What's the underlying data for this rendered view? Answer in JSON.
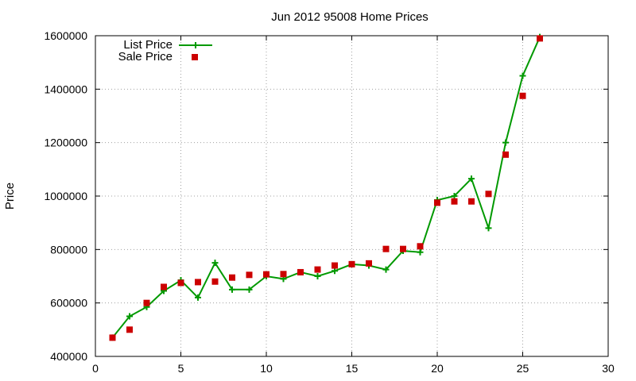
{
  "chart_data": {
    "type": "line",
    "title": "Jun 2012 95008 Home Prices",
    "xlabel": "",
    "ylabel": "Price",
    "xlim": [
      0,
      30
    ],
    "ylim": [
      400000,
      1600000
    ],
    "xticks": [
      0,
      5,
      10,
      15,
      20,
      25,
      30
    ],
    "yticks": [
      400000,
      600000,
      800000,
      1000000,
      1200000,
      1400000,
      1600000
    ],
    "grid": true,
    "legend_position": "top-left",
    "series": [
      {
        "name": "List Price",
        "style": "line-plus",
        "color": "#009900",
        "x": [
          1,
          2,
          3,
          4,
          5,
          6,
          7,
          8,
          9,
          10,
          11,
          12,
          13,
          14,
          15,
          16,
          17,
          18,
          19,
          20,
          21,
          22,
          23,
          24,
          25,
          26
        ],
        "y": [
          470000,
          550000,
          585000,
          645000,
          685000,
          620000,
          750000,
          650000,
          650000,
          700000,
          690000,
          715000,
          700000,
          720000,
          745000,
          740000,
          725000,
          795000,
          790000,
          985000,
          1000000,
          1065000,
          880000,
          1200000,
          1450000,
          1595000
        ]
      },
      {
        "name": "Sale Price",
        "style": "square-points",
        "color": "#cc0000",
        "x": [
          1,
          2,
          3,
          4,
          5,
          6,
          7,
          8,
          9,
          10,
          11,
          12,
          13,
          14,
          15,
          16,
          17,
          18,
          19,
          20,
          21,
          22,
          23,
          24,
          25,
          26
        ],
        "y": [
          470000,
          500000,
          600000,
          660000,
          675000,
          678000,
          680000,
          695000,
          705000,
          707000,
          708000,
          715000,
          725000,
          740000,
          745000,
          748000,
          802000,
          802000,
          812000,
          975000,
          980000,
          980000,
          1008000,
          1155000,
          1375000,
          1590000
        ]
      }
    ]
  }
}
